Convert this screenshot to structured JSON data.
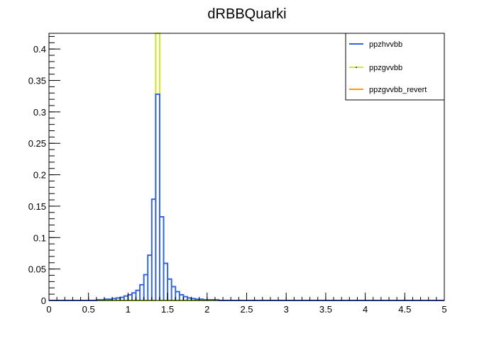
{
  "chart_data": {
    "type": "line",
    "title": "dRBBQuarki",
    "xlabel": "",
    "ylabel": "",
    "xlim": [
      0,
      5
    ],
    "ylim": [
      0,
      0.425
    ],
    "grid": false,
    "legend_position": "top-right",
    "x_ticks": [
      "0",
      "0.5",
      "1",
      "1.5",
      "2",
      "2.5",
      "3",
      "3.5",
      "4",
      "4.5",
      "5"
    ],
    "y_ticks": [
      "0",
      "0.05",
      "0.1",
      "0.15",
      "0.2",
      "0.25",
      "0.3",
      "0.35",
      "0.4"
    ],
    "bin_width": 0.05,
    "series": [
      {
        "name": "ppzhvvbb",
        "color": "#3366dd",
        "marker": "none",
        "bins": [
          [
            0.6,
            0.001
          ],
          [
            0.65,
            0.001
          ],
          [
            0.7,
            0.002
          ],
          [
            0.75,
            0.002
          ],
          [
            0.8,
            0.003
          ],
          [
            0.85,
            0.004
          ],
          [
            0.9,
            0.005
          ],
          [
            0.95,
            0.007
          ],
          [
            1.0,
            0.009
          ],
          [
            1.05,
            0.012
          ],
          [
            1.1,
            0.016
          ],
          [
            1.15,
            0.025
          ],
          [
            1.2,
            0.041
          ],
          [
            1.25,
            0.072
          ],
          [
            1.3,
            0.161
          ],
          [
            1.35,
            0.328
          ],
          [
            1.4,
            0.133
          ],
          [
            1.45,
            0.059
          ],
          [
            1.5,
            0.034
          ],
          [
            1.55,
            0.022
          ],
          [
            1.6,
            0.014
          ],
          [
            1.65,
            0.009
          ],
          [
            1.7,
            0.006
          ],
          [
            1.75,
            0.004
          ],
          [
            1.8,
            0.003
          ],
          [
            1.85,
            0.002
          ],
          [
            1.9,
            0.002
          ],
          [
            1.95,
            0.001
          ],
          [
            2.0,
            0.001
          ],
          [
            2.05,
            0.001
          ],
          [
            2.1,
            0.001
          ]
        ]
      },
      {
        "name": "ppzgvvbb",
        "color": "#ccee22",
        "marker": "dot",
        "bins": [
          [
            1.35,
            1.0
          ]
        ]
      },
      {
        "name": "ppzgvvbb_revert",
        "color": "#ff9900",
        "marker": "none",
        "bins": [
          [
            1.35,
            1.0
          ]
        ]
      }
    ]
  }
}
